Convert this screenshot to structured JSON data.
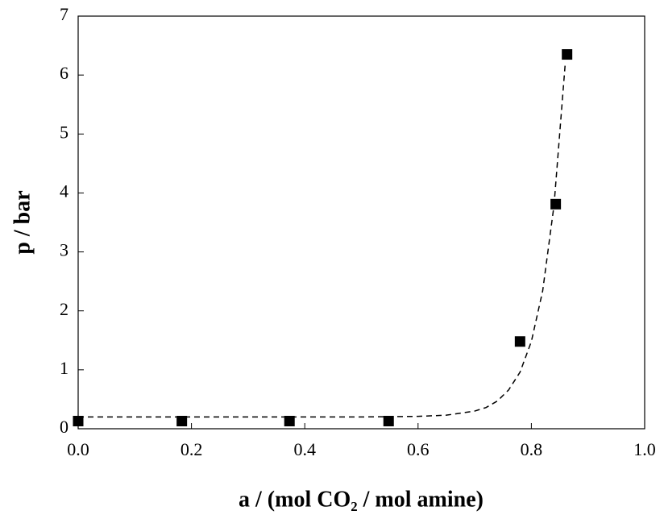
{
  "chart_data": {
    "type": "scatter",
    "xlabel": "a / (mol CO₂ / mol amine)",
    "ylabel": "p / bar",
    "xlim": [
      0,
      1
    ],
    "ylim": [
      0,
      7
    ],
    "xticks": [
      {
        "value": 0,
        "label": "0.0"
      },
      {
        "value": 0.2,
        "label": "0.2"
      },
      {
        "value": 0.4,
        "label": "0.4"
      },
      {
        "value": 0.6,
        "label": "0.6"
      },
      {
        "value": 0.8,
        "label": "0.8"
      },
      {
        "value": 1,
        "label": "1.0"
      }
    ],
    "yticks": [
      0,
      1,
      2,
      3,
      4,
      5,
      6,
      7
    ],
    "grid": false,
    "series": [
      {
        "marker": "square",
        "color": "#000000",
        "x": [
          0.0,
          0.183,
          0.373,
          0.548,
          0.78,
          0.843,
          0.863
        ],
        "values": [
          0.13,
          0.13,
          0.13,
          0.13,
          1.48,
          3.81,
          6.35
        ]
      },
      {
        "line": "dashed",
        "color": "#000000",
        "x": [
          0.0,
          0.1,
          0.2,
          0.3,
          0.4,
          0.5,
          0.6,
          0.65,
          0.7,
          0.72,
          0.74,
          0.76,
          0.78,
          0.8,
          0.82,
          0.84,
          0.86
        ],
        "values": [
          0.2,
          0.2,
          0.2,
          0.2,
          0.2,
          0.2,
          0.21,
          0.23,
          0.3,
          0.36,
          0.47,
          0.66,
          0.96,
          1.48,
          2.34,
          3.79,
          6.22
        ]
      }
    ]
  }
}
